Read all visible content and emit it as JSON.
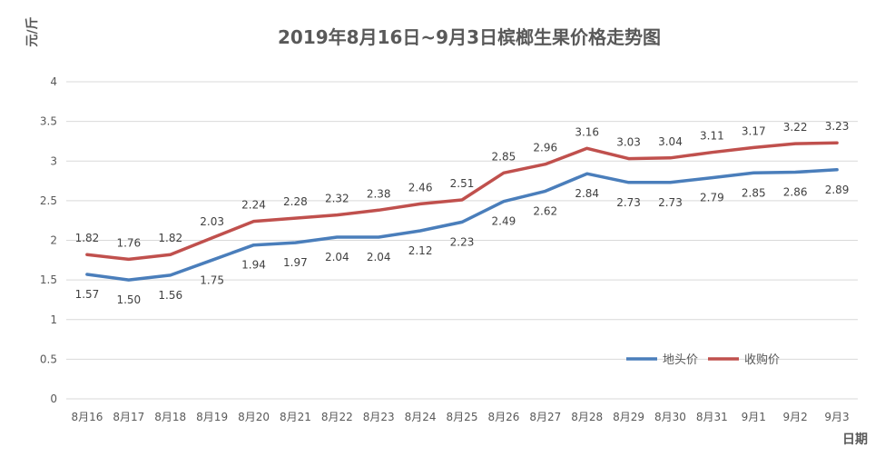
{
  "chart_data": {
    "type": "line",
    "title": "2019年8月16日~9月3日槟榔生果价格走势图",
    "ylabel": "元/斤",
    "xlabel": "日期",
    "ylim": [
      0,
      4
    ],
    "yticks": [
      "0",
      "0.5",
      "1",
      "1.5",
      "2",
      "2.5",
      "3",
      "3.5",
      "4"
    ],
    "grid": true,
    "legend_position": "bottom-right",
    "categories": [
      "8月16",
      "8月17",
      "8月18",
      "8月19",
      "8月20",
      "8月21",
      "8月22",
      "8月23",
      "8月24",
      "8月25",
      "8月26",
      "8月27",
      "8月28",
      "8月29",
      "8月30",
      "8月31",
      "9月1",
      "9月2",
      "9月3"
    ],
    "series": [
      {
        "name": "地头价",
        "color": "#4a7ebb",
        "values": [
          1.57,
          1.5,
          1.56,
          1.75,
          1.94,
          1.97,
          2.04,
          2.04,
          2.12,
          2.23,
          2.49,
          2.62,
          2.84,
          2.73,
          2.73,
          2.79,
          2.85,
          2.86,
          2.89
        ],
        "labels": [
          "1.57",
          "1.50",
          "1.56",
          "1.75",
          "1.94",
          "1.97",
          "2.04",
          "2.04",
          "2.12",
          "2.23",
          "2.49",
          "2.62",
          "2.84",
          "2.73",
          "2.73",
          "2.79",
          "2.85",
          "2.86",
          "2.89"
        ]
      },
      {
        "name": "收购价",
        "color": "#c0504d",
        "values": [
          1.82,
          1.76,
          1.82,
          2.03,
          2.24,
          2.28,
          2.32,
          2.38,
          2.46,
          2.51,
          2.85,
          2.96,
          3.16,
          3.03,
          3.04,
          3.11,
          3.17,
          3.22,
          3.23
        ],
        "labels": [
          "1.82",
          "1.76",
          "1.82",
          "2.03",
          "2.24",
          "2.28",
          "2.32",
          "2.38",
          "2.46",
          "2.51",
          "2.85",
          "2.96",
          "3.16",
          "3.03",
          "3.04",
          "3.11",
          "3.17",
          "3.22",
          "3.23"
        ]
      }
    ]
  }
}
